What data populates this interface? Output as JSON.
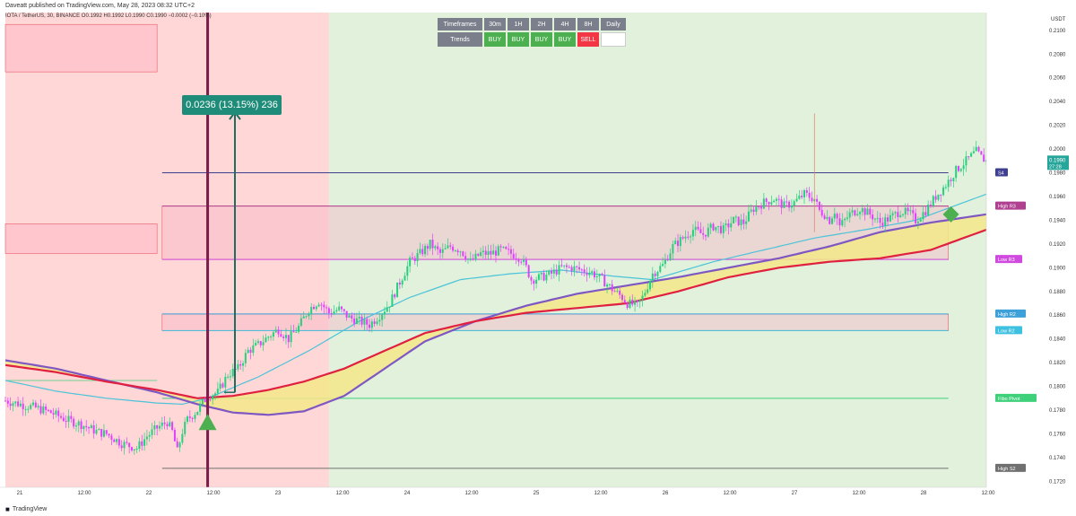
{
  "header": {
    "text": "Daveatt published on TradingView.com, May 28, 2023 08:32 UTC+2"
  },
  "symbol_line": {
    "text": "IOTA / TetherUS, 30, BINANCE  O0.1992  H0.1992  L0.1990  C0.1990  −0.0002 (−0.10%)"
  },
  "footer": {
    "brand": "TradingView"
  },
  "measure_label": "0.0236 (13.15%) 236",
  "trend_table": {
    "header_label": "Timeframes",
    "timeframes": [
      "30m",
      "1H",
      "2H",
      "4H",
      "8H",
      "Daily"
    ],
    "row_label": "Trends",
    "signals": [
      "BUY",
      "BUY",
      "BUY",
      "BUY",
      "SELL",
      ""
    ]
  },
  "colors": {
    "bull": "#26d07c",
    "bear": "#e040fb",
    "up_bg": "#e1f1dc",
    "down_bg": "#ffd7d7",
    "cyan": "#4cc3d9",
    "purple": "#7e57c2",
    "red": "#e02040",
    "cloud": "#f3e88a"
  },
  "chart_data": {
    "type": "candlestick",
    "symbol": "IOTA / TetherUS",
    "interval": "30",
    "exchange": "BINANCE",
    "currency": "USDT",
    "last_price": "0.1990",
    "countdown": "27:28",
    "ylim": [
      0.1715,
      0.2115
    ],
    "y_ticks": [
      "0.2100",
      "0.2080",
      "0.2060",
      "0.2040",
      "0.2020",
      "0.2000",
      "0.1980",
      "0.1960",
      "0.1940",
      "0.1920",
      "0.1900",
      "0.1880",
      "0.1860",
      "0.1840",
      "0.1820",
      "0.1800",
      "0.1780",
      "0.1760",
      "0.1740",
      "0.1720"
    ],
    "x_ticks": [
      "21",
      "12:00",
      "22",
      "12:00",
      "23",
      "12:00",
      "24",
      "12:00",
      "25",
      "12:00",
      "26",
      "12:00",
      "27",
      "12:00",
      "28",
      "12:00"
    ],
    "close_path": [
      [
        0,
        0.1788
      ],
      [
        6,
        0.1785
      ],
      [
        12,
        0.1782
      ],
      [
        18,
        0.1778
      ],
      [
        24,
        0.1772
      ],
      [
        30,
        0.1768
      ],
      [
        36,
        0.1762
      ],
      [
        40,
        0.176
      ],
      [
        46,
        0.1752
      ],
      [
        52,
        0.1748
      ],
      [
        56,
        0.1758
      ],
      [
        60,
        0.1765
      ],
      [
        64,
        0.177
      ],
      [
        66,
        0.1762
      ],
      [
        68,
        0.1745
      ],
      [
        70,
        0.1762
      ],
      [
        72,
        0.1772
      ],
      [
        76,
        0.178
      ],
      [
        80,
        0.1792
      ],
      [
        84,
        0.1795
      ],
      [
        88,
        0.181
      ],
      [
        92,
        0.1815
      ],
      [
        96,
        0.183
      ],
      [
        100,
        0.1835
      ],
      [
        104,
        0.1842
      ],
      [
        108,
        0.1848
      ],
      [
        112,
        0.184
      ],
      [
        116,
        0.185
      ],
      [
        120,
        0.1865
      ],
      [
        124,
        0.1872
      ],
      [
        128,
        0.1862
      ],
      [
        132,
        0.1865
      ],
      [
        136,
        0.1858
      ],
      [
        140,
        0.1855
      ],
      [
        144,
        0.1852
      ],
      [
        148,
        0.186
      ],
      [
        152,
        0.187
      ],
      [
        156,
        0.1888
      ],
      [
        160,
        0.1905
      ],
      [
        164,
        0.1912
      ],
      [
        168,
        0.192
      ],
      [
        172,
        0.1912
      ],
      [
        176,
        0.1918
      ],
      [
        180,
        0.1915
      ],
      [
        184,
        0.1905
      ],
      [
        188,
        0.1912
      ],
      [
        192,
        0.1912
      ],
      [
        196,
        0.1915
      ],
      [
        200,
        0.1912
      ],
      [
        204,
        0.1908
      ],
      [
        206,
        0.19
      ],
      [
        208,
        0.189
      ],
      [
        212,
        0.1892
      ],
      [
        216,
        0.1895
      ],
      [
        220,
        0.19
      ],
      [
        224,
        0.19
      ],
      [
        228,
        0.1898
      ],
      [
        232,
        0.1896
      ],
      [
        236,
        0.189
      ],
      [
        240,
        0.1882
      ],
      [
        244,
        0.1875
      ],
      [
        246,
        0.187
      ],
      [
        250,
        0.1868
      ],
      [
        252,
        0.1875
      ],
      [
        256,
        0.1895
      ],
      [
        260,
        0.1902
      ],
      [
        264,
        0.1918
      ],
      [
        268,
        0.1925
      ],
      [
        272,
        0.1932
      ],
      [
        276,
        0.1928
      ],
      [
        280,
        0.1935
      ],
      [
        284,
        0.1932
      ],
      [
        288,
        0.194
      ],
      [
        292,
        0.1938
      ],
      [
        296,
        0.195
      ],
      [
        300,
        0.1955
      ],
      [
        304,
        0.1958
      ],
      [
        308,
        0.1952
      ],
      [
        312,
        0.1955
      ],
      [
        316,
        0.1962
      ],
      [
        320,
        0.1958
      ],
      [
        322,
        0.1948
      ],
      [
        324,
        0.1945
      ],
      [
        326,
        0.194
      ],
      [
        328,
        0.1948
      ],
      [
        330,
        0.1935
      ],
      [
        334,
        0.1945
      ],
      [
        338,
        0.195
      ],
      [
        342,
        0.1945
      ],
      [
        346,
        0.1938
      ],
      [
        350,
        0.1942
      ],
      [
        354,
        0.1948
      ],
      [
        358,
        0.1945
      ],
      [
        360,
        0.194
      ],
      [
        364,
        0.1948
      ],
      [
        368,
        0.196
      ],
      [
        372,
        0.197
      ],
      [
        376,
        0.1982
      ],
      [
        380,
        0.199
      ],
      [
        384,
        0.1998
      ],
      [
        386,
        0.1993
      ],
      [
        388,
        0.199
      ]
    ],
    "x_total": 388,
    "moving_averages": [
      {
        "name": "cyan",
        "points": [
          [
            0,
            0.1805
          ],
          [
            20,
            0.1796
          ],
          [
            40,
            0.179
          ],
          [
            60,
            0.1786
          ],
          [
            70,
            0.1785
          ],
          [
            80,
            0.179
          ],
          [
            100,
            0.1808
          ],
          [
            120,
            0.183
          ],
          [
            140,
            0.1855
          ],
          [
            160,
            0.1875
          ],
          [
            180,
            0.189
          ],
          [
            200,
            0.1895
          ],
          [
            220,
            0.1898
          ],
          [
            240,
            0.1893
          ],
          [
            256,
            0.189
          ],
          [
            280,
            0.1905
          ],
          [
            300,
            0.1915
          ],
          [
            320,
            0.1925
          ],
          [
            340,
            0.1932
          ],
          [
            360,
            0.194
          ],
          [
            388,
            0.1962
          ]
        ]
      },
      {
        "name": "purple",
        "points": [
          [
            0,
            0.1822
          ],
          [
            20,
            0.1815
          ],
          [
            40,
            0.1805
          ],
          [
            60,
            0.1795
          ],
          [
            76,
            0.1785
          ],
          [
            90,
            0.1778
          ],
          [
            104,
            0.1776
          ],
          [
            118,
            0.1779
          ],
          [
            134,
            0.1792
          ],
          [
            150,
            0.1815
          ],
          [
            166,
            0.1838
          ],
          [
            186,
            0.1855
          ],
          [
            206,
            0.1868
          ],
          [
            226,
            0.1878
          ],
          [
            246,
            0.1885
          ],
          [
            266,
            0.1892
          ],
          [
            286,
            0.19
          ],
          [
            306,
            0.1908
          ],
          [
            326,
            0.1918
          ],
          [
            346,
            0.193
          ],
          [
            366,
            0.1938
          ],
          [
            388,
            0.1945
          ]
        ]
      },
      {
        "name": "red",
        "points": [
          [
            0,
            0.1818
          ],
          [
            20,
            0.1812
          ],
          [
            40,
            0.1804
          ],
          [
            60,
            0.1797
          ],
          [
            76,
            0.179
          ],
          [
            90,
            0.1792
          ],
          [
            104,
            0.1797
          ],
          [
            118,
            0.1804
          ],
          [
            134,
            0.1815
          ],
          [
            150,
            0.183
          ],
          [
            166,
            0.1845
          ],
          [
            186,
            0.1855
          ],
          [
            206,
            0.1862
          ],
          [
            226,
            0.1866
          ],
          [
            246,
            0.187
          ],
          [
            266,
            0.188
          ],
          [
            286,
            0.1892
          ],
          [
            306,
            0.19
          ],
          [
            326,
            0.1905
          ],
          [
            346,
            0.1908
          ],
          [
            366,
            0.1915
          ],
          [
            388,
            0.1932
          ]
        ]
      }
    ],
    "levels": [
      {
        "label": "S4",
        "value": 0.198
      },
      {
        "label": "High R3",
        "value": 0.1952
      },
      {
        "label": "Low R3",
        "value": 0.1907
      },
      {
        "label": "High R2",
        "value": 0.1861
      },
      {
        "label": "Low R2",
        "value": 0.1847
      },
      {
        "label": "Fibo Pivot",
        "value": 0.179
      },
      {
        "label": "High S2",
        "value": 0.1731
      }
    ],
    "level_colors": {
      "S4": "#3f3f8f",
      "High R3": "#b04090",
      "Low R3": "#d04ae0",
      "High R2": "#3ea0d8",
      "Low R2": "#3ec0e0",
      "Fibo Pivot": "#3fd07a",
      "High S2": "#707070"
    },
    "markers": [
      {
        "type": "triangle-up",
        "at_x": 80,
        "value": 0.177,
        "color": "#4caf50"
      },
      {
        "type": "diamond",
        "at_x": 374,
        "value": 0.1945,
        "color": "#4caf50"
      }
    ],
    "measure": {
      "from_value": 0.1795,
      "to_value": 0.2031,
      "label_ref": "measure_label"
    }
  }
}
